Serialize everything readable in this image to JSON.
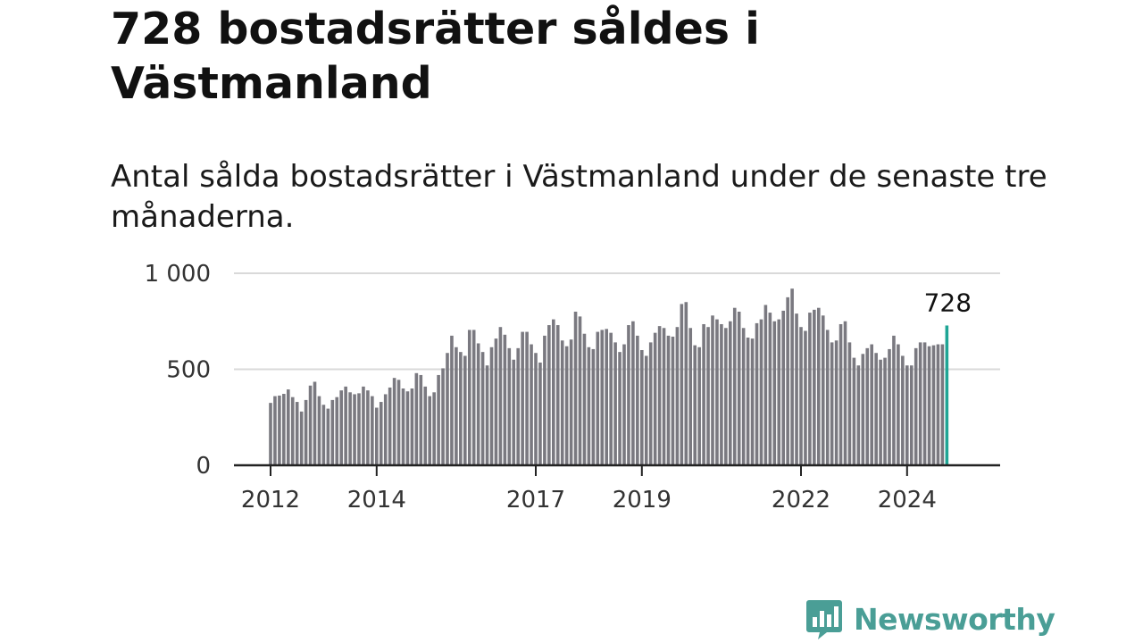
{
  "title": "728 bostadsrätter såldes i Västmanland",
  "subtitle": "Antal sålda bostadsrätter i Västmanland under de senaste tre månaderna.",
  "brand": {
    "name": "Newsworthy",
    "logo_icon": "bar-chart-speech-bubble-icon"
  },
  "colors": {
    "bar": "#7a7980",
    "highlight": "#1fa595",
    "grid": "#d9d9d9",
    "axis": "#222222",
    "brand": "#4a9e96"
  },
  "chart_data": {
    "type": "bar",
    "title": "728 bostadsrätter såldes i Västmanland",
    "subtitle": "Antal sålda bostadsrätter i Västmanland under de senaste tre månaderna.",
    "xlabel": "",
    "ylabel": "",
    "ylim": [
      0,
      1000
    ],
    "y_ticks": [
      0,
      500,
      1000
    ],
    "y_tick_labels": [
      "0",
      "500",
      "1 000"
    ],
    "x_tick_labels": [
      {
        "label": "2012",
        "index": 0
      },
      {
        "label": "2014",
        "index": 24
      },
      {
        "label": "2017",
        "index": 60
      },
      {
        "label": "2019",
        "index": 84
      },
      {
        "label": "2022",
        "index": 120
      },
      {
        "label": "2024",
        "index": 144
      }
    ],
    "grid": true,
    "highlight": {
      "index": 153,
      "value": 728,
      "label": "728"
    },
    "values": [
      325,
      360,
      363,
      372,
      395,
      355,
      330,
      280,
      340,
      415,
      435,
      360,
      315,
      295,
      340,
      355,
      390,
      410,
      380,
      370,
      375,
      410,
      390,
      360,
      300,
      330,
      370,
      405,
      455,
      445,
      400,
      385,
      400,
      480,
      470,
      410,
      360,
      380,
      470,
      505,
      585,
      675,
      615,
      590,
      570,
      705,
      705,
      635,
      590,
      520,
      615,
      660,
      720,
      680,
      610,
      550,
      610,
      695,
      695,
      630,
      585,
      535,
      675,
      730,
      760,
      730,
      650,
      620,
      655,
      800,
      775,
      685,
      615,
      605,
      695,
      705,
      710,
      690,
      640,
      590,
      630,
      730,
      750,
      675,
      600,
      570,
      640,
      690,
      725,
      715,
      675,
      670,
      720,
      840,
      850,
      715,
      625,
      615,
      735,
      720,
      780,
      760,
      735,
      715,
      750,
      820,
      800,
      715,
      665,
      660,
      740,
      760,
      835,
      795,
      750,
      760,
      805,
      875,
      920,
      790,
      720,
      700,
      795,
      810,
      820,
      780,
      705,
      640,
      650,
      735,
      750,
      640,
      560,
      520,
      580,
      610,
      630,
      585,
      550,
      560,
      605,
      675,
      630,
      570,
      520,
      520,
      610,
      640,
      640,
      620,
      625,
      630,
      630,
      728
    ]
  }
}
